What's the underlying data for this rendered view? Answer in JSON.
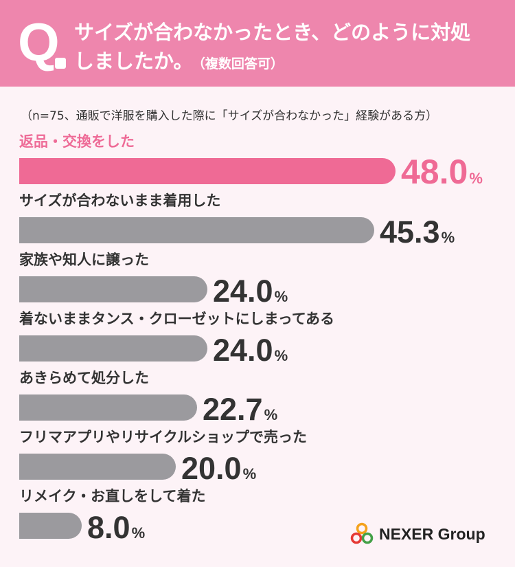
{
  "header": {
    "q_letter": "Q",
    "question_line1": "サイズが合わなかったとき、どのように対処",
    "question_line2": "しましたか。",
    "question_note": "（複数回答可）"
  },
  "note": "（n=75、通販で洋服を購入した際に「サイズが合わなかった」経験がある方）",
  "chart_data": {
    "type": "bar",
    "orientation": "horizontal",
    "categories": [
      "返品・交換をした",
      "サイズが合わないまま着用した",
      "家族や知人に譲った",
      "着ないままタンス・クローゼットにしまってある",
      "あきらめて処分した",
      "フリマアプリやリサイクルショップで売った",
      "リメイク・お直しをして着た"
    ],
    "values": [
      48.0,
      45.3,
      24.0,
      24.0,
      22.7,
      20.0,
      8.0
    ],
    "value_labels": [
      "48.0",
      "45.3",
      "24.0",
      "24.0",
      "22.7",
      "20.0",
      "8.0"
    ],
    "unit": "%",
    "highlight_index": 0,
    "colors": {
      "highlight": "#ef6a95",
      "bar": "#9b9a9e",
      "header": "#ee86ad"
    }
  },
  "logo": {
    "text": "NEXER Group"
  }
}
